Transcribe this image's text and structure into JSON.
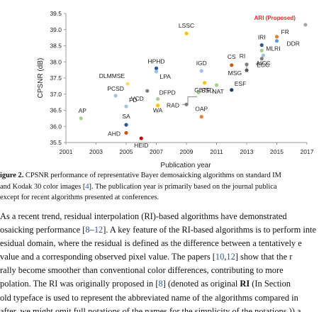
{
  "chart_data": {
    "type": "scatter",
    "xlabel": "Publication year",
    "ylabel": "CPSNR (dB)",
    "xlim": [
      2001,
      2017
    ],
    "ylim": [
      35.5,
      39.5
    ],
    "xticks": [
      "2001",
      "2003",
      "2005",
      "2007",
      "2009",
      "2011",
      "2013",
      "2015",
      "2017"
    ],
    "yticks": [
      "35.5",
      "36.0",
      "36.5",
      "37.0",
      "37.5",
      "38.0",
      "38.5",
      "39.0",
      "39.5"
    ],
    "annotation": "ARI (Proposed)",
    "annotation_color": "#d6302b",
    "points": [
      {
        "label": "AP",
        "x": 2002.0,
        "y": 36.25,
        "color": "#a8d08d"
      },
      {
        "label": "PCSD",
        "x": 2004.3,
        "y": 36.95,
        "color": "#9dc3e6"
      },
      {
        "label": "DLMMSE",
        "x": 2005.1,
        "y": 37.32,
        "color": "#ffd966"
      },
      {
        "label": "FD",
        "x": 2005.0,
        "y": 36.62,
        "color": "#9dc3e6"
      },
      {
        "label": "SA",
        "x": 2005.0,
        "y": 36.05,
        "color": "#2f5597"
      },
      {
        "label": "AHD",
        "x": 2005.0,
        "y": 35.8,
        "color": "#c55a11"
      },
      {
        "label": "HEID",
        "x": 2006.0,
        "y": 35.63,
        "color": "#c00000"
      },
      {
        "label": "VCD",
        "x": 2006.4,
        "y": 37.1,
        "color": "#7f7f7f"
      },
      {
        "label": "HPHD",
        "x": 2007.0,
        "y": 37.8,
        "color": "#2f5597"
      },
      {
        "label": "LPA",
        "x": 2007.0,
        "y": 37.7,
        "color": "#9dc3e6"
      },
      {
        "label": "DFPD",
        "x": 2007.1,
        "y": 36.85,
        "color": "#a8d08d"
      },
      {
        "label": "WA",
        "x": 2007.1,
        "y": 36.65,
        "color": "#ffc000"
      },
      {
        "label": "LSSC",
        "x": 2009.0,
        "y": 38.88,
        "color": "#ffc000"
      },
      {
        "label": "SSD",
        "x": 2009.8,
        "y": 37.05,
        "color": "#a8d08d"
      },
      {
        "label": "RAD",
        "x": 2009.0,
        "y": 36.68,
        "color": "#7f7f7f"
      },
      {
        "label": "IGD",
        "x": 2010.0,
        "y": 37.72,
        "color": "#9dc3e6"
      },
      {
        "label": "GBTF",
        "x": 2010.2,
        "y": 37.35,
        "color": "#ffc000"
      },
      {
        "label": "OAP",
        "x": 2010.0,
        "y": 36.3,
        "color": "#ed7d31"
      },
      {
        "label": "NAT",
        "x": 2011.0,
        "y": 37.28,
        "color": "#a8d08d"
      },
      {
        "label": "CS",
        "x": 2012.0,
        "y": 37.9,
        "color": "#c55a11"
      },
      {
        "label": "ESF",
        "x": 2012.0,
        "y": 37.13,
        "color": "#1f3864"
      },
      {
        "label": "RI",
        "x": 2013.0,
        "y": 37.92,
        "color": "#7f7f7f"
      },
      {
        "label": "MSG",
        "x": 2013.0,
        "y": 37.74,
        "color": "#595959"
      },
      {
        "label": "IRI",
        "x": 2014.0,
        "y": 38.52,
        "color": "#2f5597"
      },
      {
        "label": "MLRI",
        "x": 2014.0,
        "y": 38.35,
        "color": "#a8d08d"
      },
      {
        "label": "AICC",
        "x": 2014.1,
        "y": 38.2,
        "color": "#9dc3e6"
      },
      {
        "label": "ECC",
        "x": 2014.0,
        "y": 38.1,
        "color": "#7f7f7f"
      },
      {
        "label": "FR",
        "x": 2015.0,
        "y": 38.78,
        "color": "#ed7d31"
      },
      {
        "label": "DDR",
        "x": 2015.0,
        "y": 38.65,
        "color": "#5b9bd5"
      },
      {
        "label": "ARI (Proposed)",
        "x": 2016.9,
        "y": 39.15,
        "color": "#a6a6a6"
      }
    ]
  },
  "caption": {
    "lines": [
      [
        {
          "t": "igure 2. ",
          "b": true
        },
        {
          "t": "CPSNR performance of representative Bayer demosaicking algorithms on standard IM"
        }
      ],
      [
        {
          "t": "and Kodak 30 color images ["
        },
        {
          "t": "4",
          "c": true
        },
        {
          "t": "]. The publication year is primarily based on the journal publica"
        }
      ],
      [
        {
          "t": "except for recent algorithms presented at conferences."
        }
      ]
    ]
  },
  "body": {
    "lines": [
      [
        {
          "t": "As a recent trend, residual interpolation (RI)-based algorithms have demonstrated"
        }
      ],
      [
        {
          "t": "osaicking performance ["
        },
        {
          "t": "8",
          "c": true
        },
        {
          "t": "–"
        },
        {
          "t": "12",
          "c": true
        },
        {
          "t": "]. A key feature of the RI-based algorithms is to perform inte"
        }
      ],
      [
        {
          "t": "esidual domain, where the residual is defined as the difference between a tentatively e"
        }
      ],
      [
        {
          "t": " value and a corresponding observed pixel value. The papers ["
        },
        {
          "t": "10",
          "c": true
        },
        {
          "t": ","
        },
        {
          "t": "12",
          "c": true
        },
        {
          "t": "] show that the r"
        }
      ],
      [
        {
          "t": "rally become smoother than conventional color differences, contributing to more"
        }
      ],
      [
        {
          "t": "polation. The RI was originally proposed in ["
        },
        {
          "t": "8",
          "c": true
        },
        {
          "t": "] (denoted as original "
        },
        {
          "t": "RI",
          "b": true
        },
        {
          "t": " (In Section"
        }
      ],
      [
        {
          "t": "old typeface is used to represent the abbreviated name of the algorithms compared in"
        }
      ],
      [
        {
          "t": "after, we might omit full notations of the names for the simplicity of the notations.)) a"
        }
      ]
    ]
  }
}
